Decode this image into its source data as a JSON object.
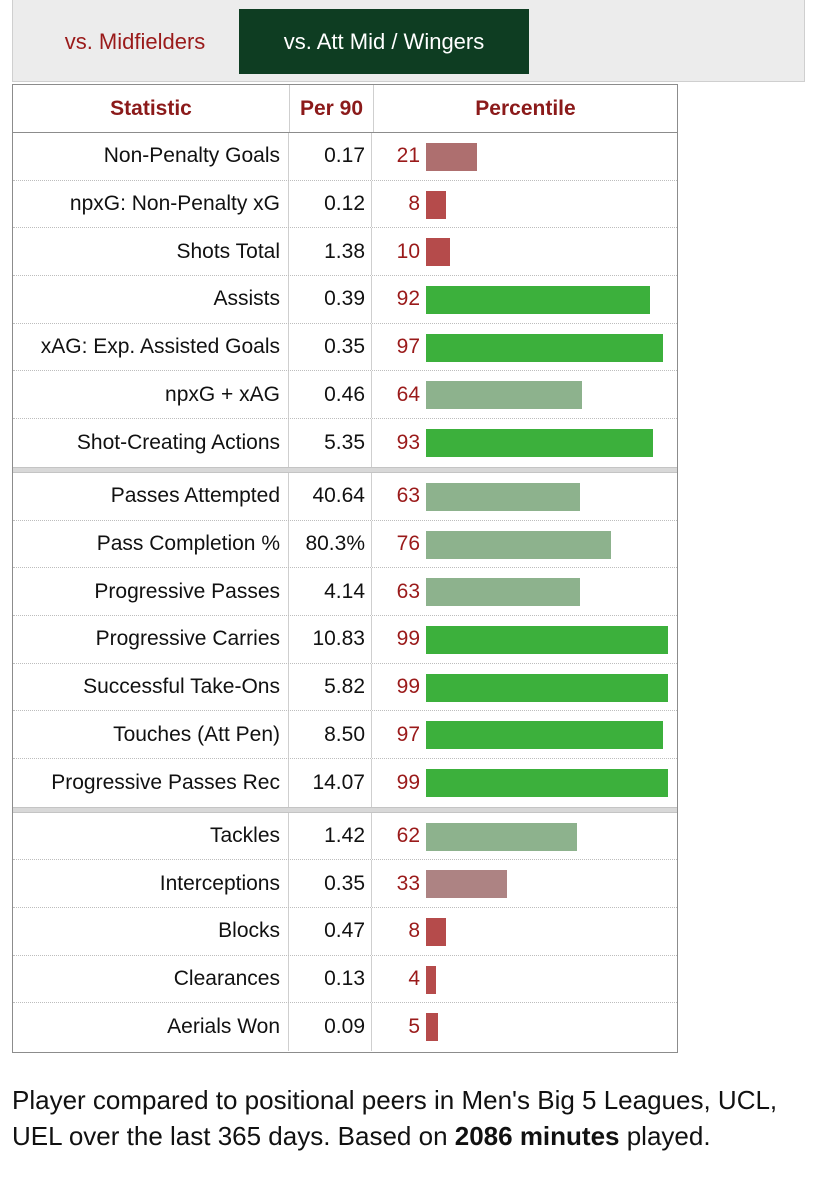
{
  "tabs": [
    {
      "label": "vs. Midfielders",
      "active": false
    },
    {
      "label": "vs. Att Mid / Wingers",
      "active": true
    }
  ],
  "table": {
    "headers": {
      "statistic": "Statistic",
      "per90": "Per 90",
      "percentile": "Percentile"
    },
    "colors": {
      "high": "#3cb03c",
      "mid": "#8db28d",
      "low": "#ae6f6f",
      "very_low": "#b54b4b",
      "muted_red": "#ad8383"
    },
    "groups": [
      [
        {
          "stat": "Non-Penalty Goals",
          "per90": "0.17",
          "pct": 21
        },
        {
          "stat": "npxG: Non-Penalty xG",
          "per90": "0.12",
          "pct": 8
        },
        {
          "stat": "Shots Total",
          "per90": "1.38",
          "pct": 10
        },
        {
          "stat": "Assists",
          "per90": "0.39",
          "pct": 92
        },
        {
          "stat": "xAG: Exp. Assisted Goals",
          "per90": "0.35",
          "pct": 97
        },
        {
          "stat": "npxG + xAG",
          "per90": "0.46",
          "pct": 64
        },
        {
          "stat": "Shot-Creating Actions",
          "per90": "5.35",
          "pct": 93
        }
      ],
      [
        {
          "stat": "Passes Attempted",
          "per90": "40.64",
          "pct": 63
        },
        {
          "stat": "Pass Completion %",
          "per90": "80.3%",
          "pct": 76
        },
        {
          "stat": "Progressive Passes",
          "per90": "4.14",
          "pct": 63
        },
        {
          "stat": "Progressive Carries",
          "per90": "10.83",
          "pct": 99
        },
        {
          "stat": "Successful Take-Ons",
          "per90": "5.82",
          "pct": 99
        },
        {
          "stat": "Touches (Att Pen)",
          "per90": "8.50",
          "pct": 97
        },
        {
          "stat": "Progressive Passes Rec",
          "per90": "14.07",
          "pct": 99
        }
      ],
      [
        {
          "stat": "Tackles",
          "per90": "1.42",
          "pct": 62
        },
        {
          "stat": "Interceptions",
          "per90": "0.35",
          "pct": 33
        },
        {
          "stat": "Blocks",
          "per90": "0.47",
          "pct": 8
        },
        {
          "stat": "Clearances",
          "per90": "0.13",
          "pct": 4
        },
        {
          "stat": "Aerials Won",
          "per90": "0.09",
          "pct": 5
        }
      ]
    ]
  },
  "note": {
    "text_before": "Player compared to positional peers in Men's Big 5 Leagues, UCL, UEL over the last 365 days. Based on ",
    "minutes_bold": "2086 minutes",
    "text_after": " played."
  }
}
